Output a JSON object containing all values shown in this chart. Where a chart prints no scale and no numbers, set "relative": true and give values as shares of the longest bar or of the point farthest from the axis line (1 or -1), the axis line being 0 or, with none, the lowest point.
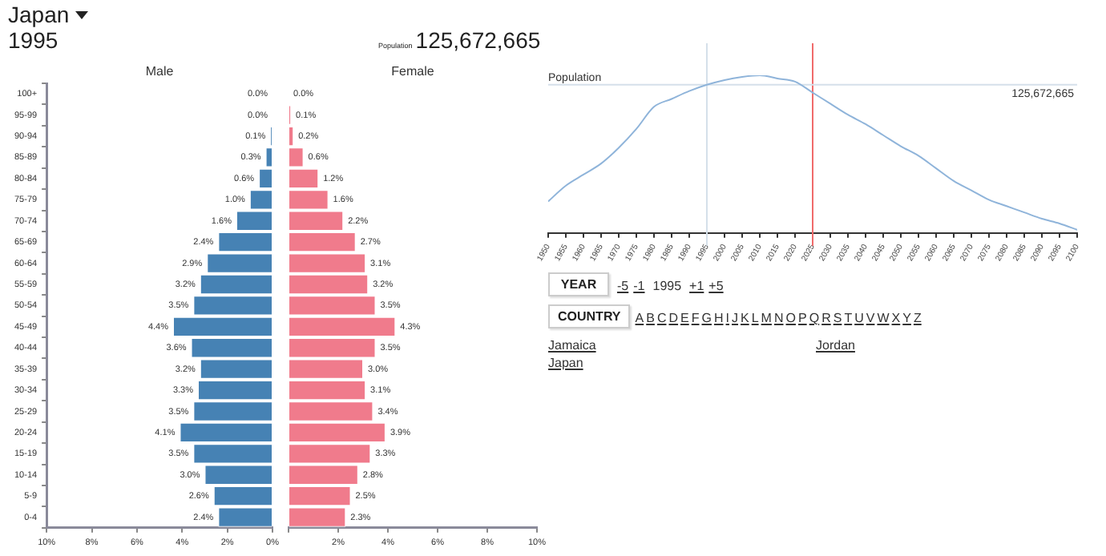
{
  "chart_data": [
    {
      "type": "bar",
      "orientation": "horizontal",
      "title": "Japan",
      "subtitle": "1995",
      "annotations": [
        "Population",
        "125,672,665"
      ],
      "categories": [
        "100+",
        "95-99",
        "90-94",
        "85-89",
        "80-84",
        "75-79",
        "70-74",
        "65-69",
        "60-64",
        "55-59",
        "50-54",
        "45-49",
        "40-44",
        "35-39",
        "30-34",
        "25-29",
        "20-24",
        "15-19",
        "10-14",
        "5-9",
        "0-4"
      ],
      "series": [
        {
          "name": "Male",
          "color": "#4682b4",
          "values": [
            0.0,
            0.0,
            0.1,
            0.3,
            0.6,
            1.0,
            1.6,
            2.4,
            2.9,
            3.2,
            3.5,
            4.4,
            3.6,
            3.2,
            3.3,
            3.5,
            4.1,
            3.5,
            3.0,
            2.6,
            2.4
          ],
          "value_labels": [
            "0.0%",
            "0.0%",
            "0.1%",
            "0.3%",
            "0.6%",
            "1.0%",
            "1.6%",
            "2.4%",
            "2.9%",
            "3.2%",
            "3.5%",
            "4.4%",
            "3.6%",
            "3.2%",
            "3.3%",
            "3.5%",
            "4.1%",
            "3.5%",
            "3.0%",
            "2.6%",
            "2.4%"
          ]
        }
      ],
      "xlim": [
        10,
        0
      ],
      "xticks": [
        {
          "value": 10,
          "label": "10%"
        },
        {
          "value": 8,
          "label": "8%"
        },
        {
          "value": 6,
          "label": "6%"
        },
        {
          "value": 4,
          "label": "4%"
        },
        {
          "value": 2,
          "label": "2%"
        },
        {
          "value": 0,
          "label": "0%"
        }
      ]
    },
    {
      "type": "bar",
      "orientation": "horizontal",
      "tick_labels": "x",
      "series": [
        {
          "name": "Female",
          "color": "#f07b8c",
          "values": [
            0.0,
            0.1,
            0.2,
            0.6,
            1.2,
            1.6,
            2.2,
            2.7,
            3.1,
            3.2,
            3.5,
            4.3,
            3.5,
            3.0,
            3.1,
            3.4,
            3.9,
            3.3,
            2.8,
            2.5,
            2.3
          ],
          "value_labels": [
            "0.0%",
            "0.1%",
            "0.2%",
            "0.6%",
            "1.2%",
            "1.6%",
            "2.2%",
            "2.7%",
            "3.1%",
            "3.2%",
            "3.5%",
            "4.3%",
            "3.5%",
            "3.0%",
            "3.1%",
            "3.4%",
            "3.9%",
            "3.3%",
            "2.8%",
            "2.5%",
            "2.3%"
          ]
        }
      ],
      "xlim": [
        0,
        10
      ],
      "xticks": [
        {
          "value": 0,
          "label": null
        },
        {
          "value": 2,
          "label": "2%"
        },
        {
          "value": 4,
          "label": "4%"
        },
        {
          "value": 6,
          "label": "6%"
        },
        {
          "value": 8,
          "label": "8%"
        },
        {
          "value": 10,
          "label": "10%"
        }
      ]
    },
    {
      "type": "line",
      "relative": true,
      "annotations": [
        "Population",
        "125,672,665"
      ],
      "x": [
        1950,
        1955,
        1960,
        1965,
        1970,
        1975,
        1980,
        1985,
        1990,
        1995,
        2000,
        2005,
        2010,
        2015,
        2020,
        2025,
        2030,
        2035,
        2040,
        2045,
        2050,
        2055,
        2060,
        2065,
        2070,
        2075,
        2080,
        2085,
        2090,
        2095,
        2100
      ],
      "series": [
        {
          "color": "#8fb4da",
          "values": [
            0.2,
            0.3,
            0.37,
            0.44,
            0.54,
            0.66,
            0.8,
            0.85,
            0.9,
            0.94,
            0.97,
            0.99,
            1,
            0.98,
            0.96,
            0.89,
            0.82,
            0.75,
            0.69,
            0.62,
            0.55,
            0.49,
            0.41,
            0.33,
            0.27,
            0.21,
            0.17,
            0.13,
            0.09,
            0.06,
            0.02
          ]
        }
      ],
      "xlim": [
        1950,
        2100
      ],
      "xticks": [
        1950,
        1955,
        1960,
        1965,
        1970,
        1975,
        1980,
        1985,
        1990,
        1995,
        2000,
        2005,
        2010,
        2015,
        2020,
        2025,
        2030,
        2035,
        2040,
        2045,
        2050,
        2055,
        2060,
        2065,
        2070,
        2075,
        2080,
        2085,
        2090,
        2095,
        2100
      ],
      "ref_lines": [
        {
          "axis": "x",
          "value": 1995,
          "color": "#d5e0ea"
        },
        {
          "axis": "x",
          "value": 2025,
          "color": "#f06b6b"
        },
        {
          "axis": "y",
          "value": 0.94,
          "color": "#d5e0ea"
        }
      ]
    },
    {
      "type": "other",
      "annotations": [
        "YEAR",
        "-5",
        "-1",
        "1995",
        "+1",
        "+5",
        "COUNTRY",
        "A",
        "B",
        "C",
        "D",
        "E",
        "F",
        "G",
        "H",
        "I",
        "J",
        "K",
        "L",
        "M",
        "N",
        "O",
        "P",
        "Q",
        "R",
        "S",
        "T",
        "U",
        "V",
        "W",
        "X",
        "Y",
        "Z",
        "Jamaica",
        "Japan",
        "Jordan"
      ]
    }
  ]
}
